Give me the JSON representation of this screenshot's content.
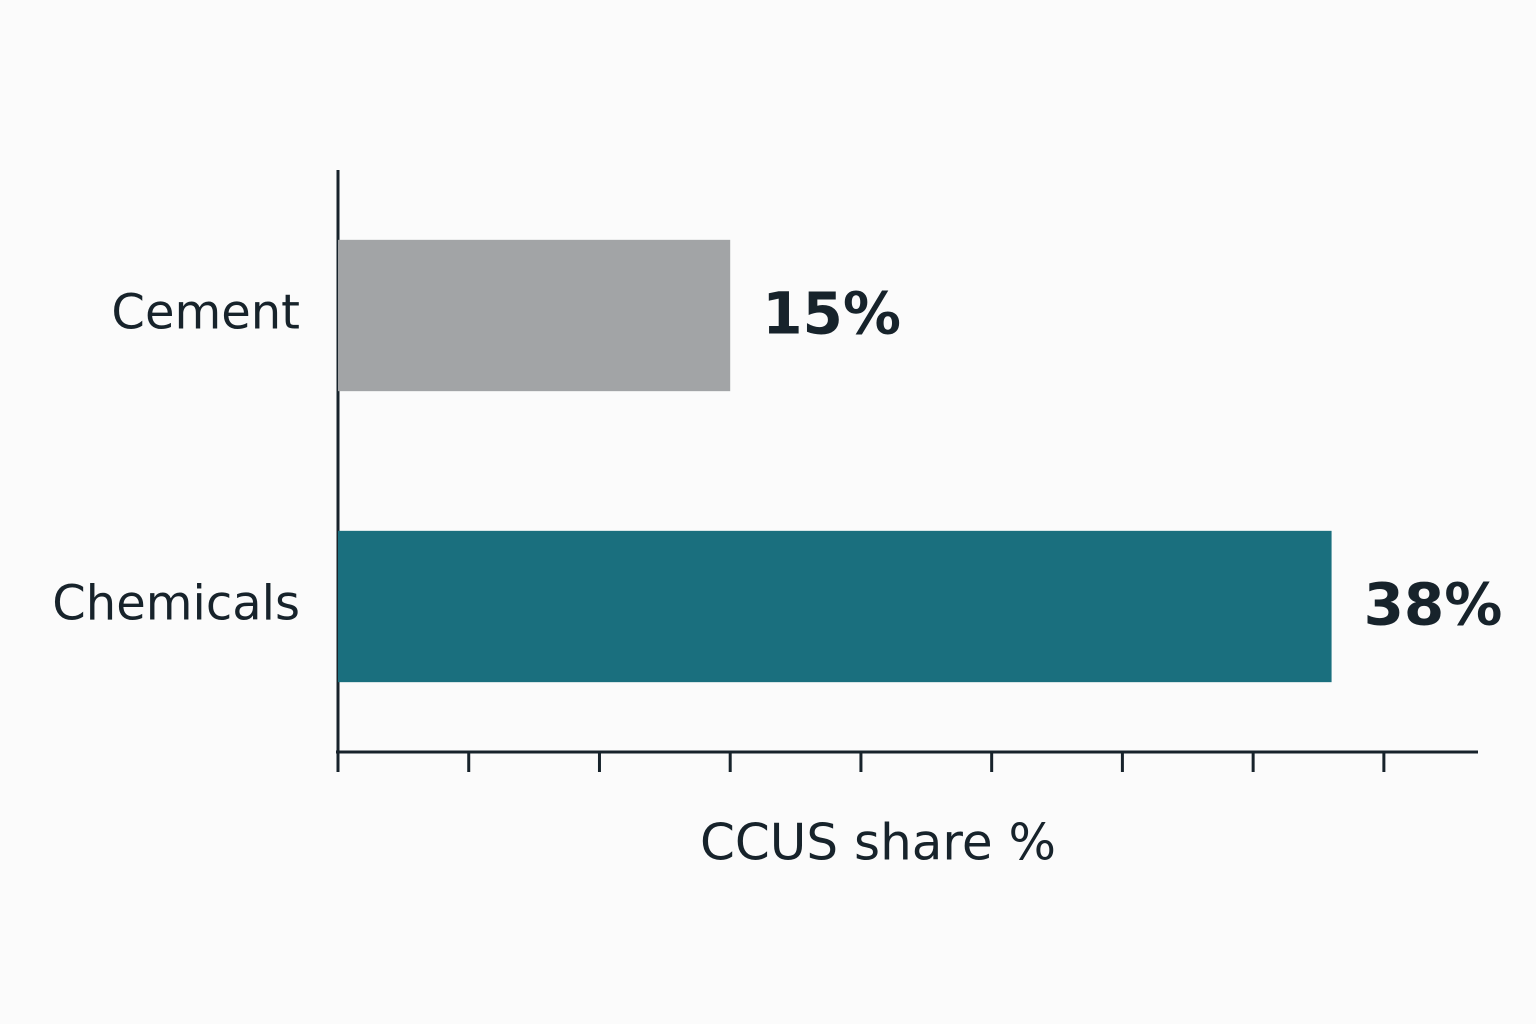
{
  "chart_data": {
    "type": "bar",
    "orientation": "horizontal",
    "categories": [
      "Cement",
      "Chemicals"
    ],
    "values": [
      15,
      38
    ],
    "value_labels": [
      "15%",
      "38%"
    ],
    "colors": [
      "#a2a4a6",
      "#1a6f7e"
    ],
    "x_label": "CCUS share %",
    "xlim": [
      0,
      43.6
    ],
    "xticks": [
      0,
      5,
      10,
      15,
      20,
      25,
      30,
      35,
      40
    ],
    "grid": false
  }
}
